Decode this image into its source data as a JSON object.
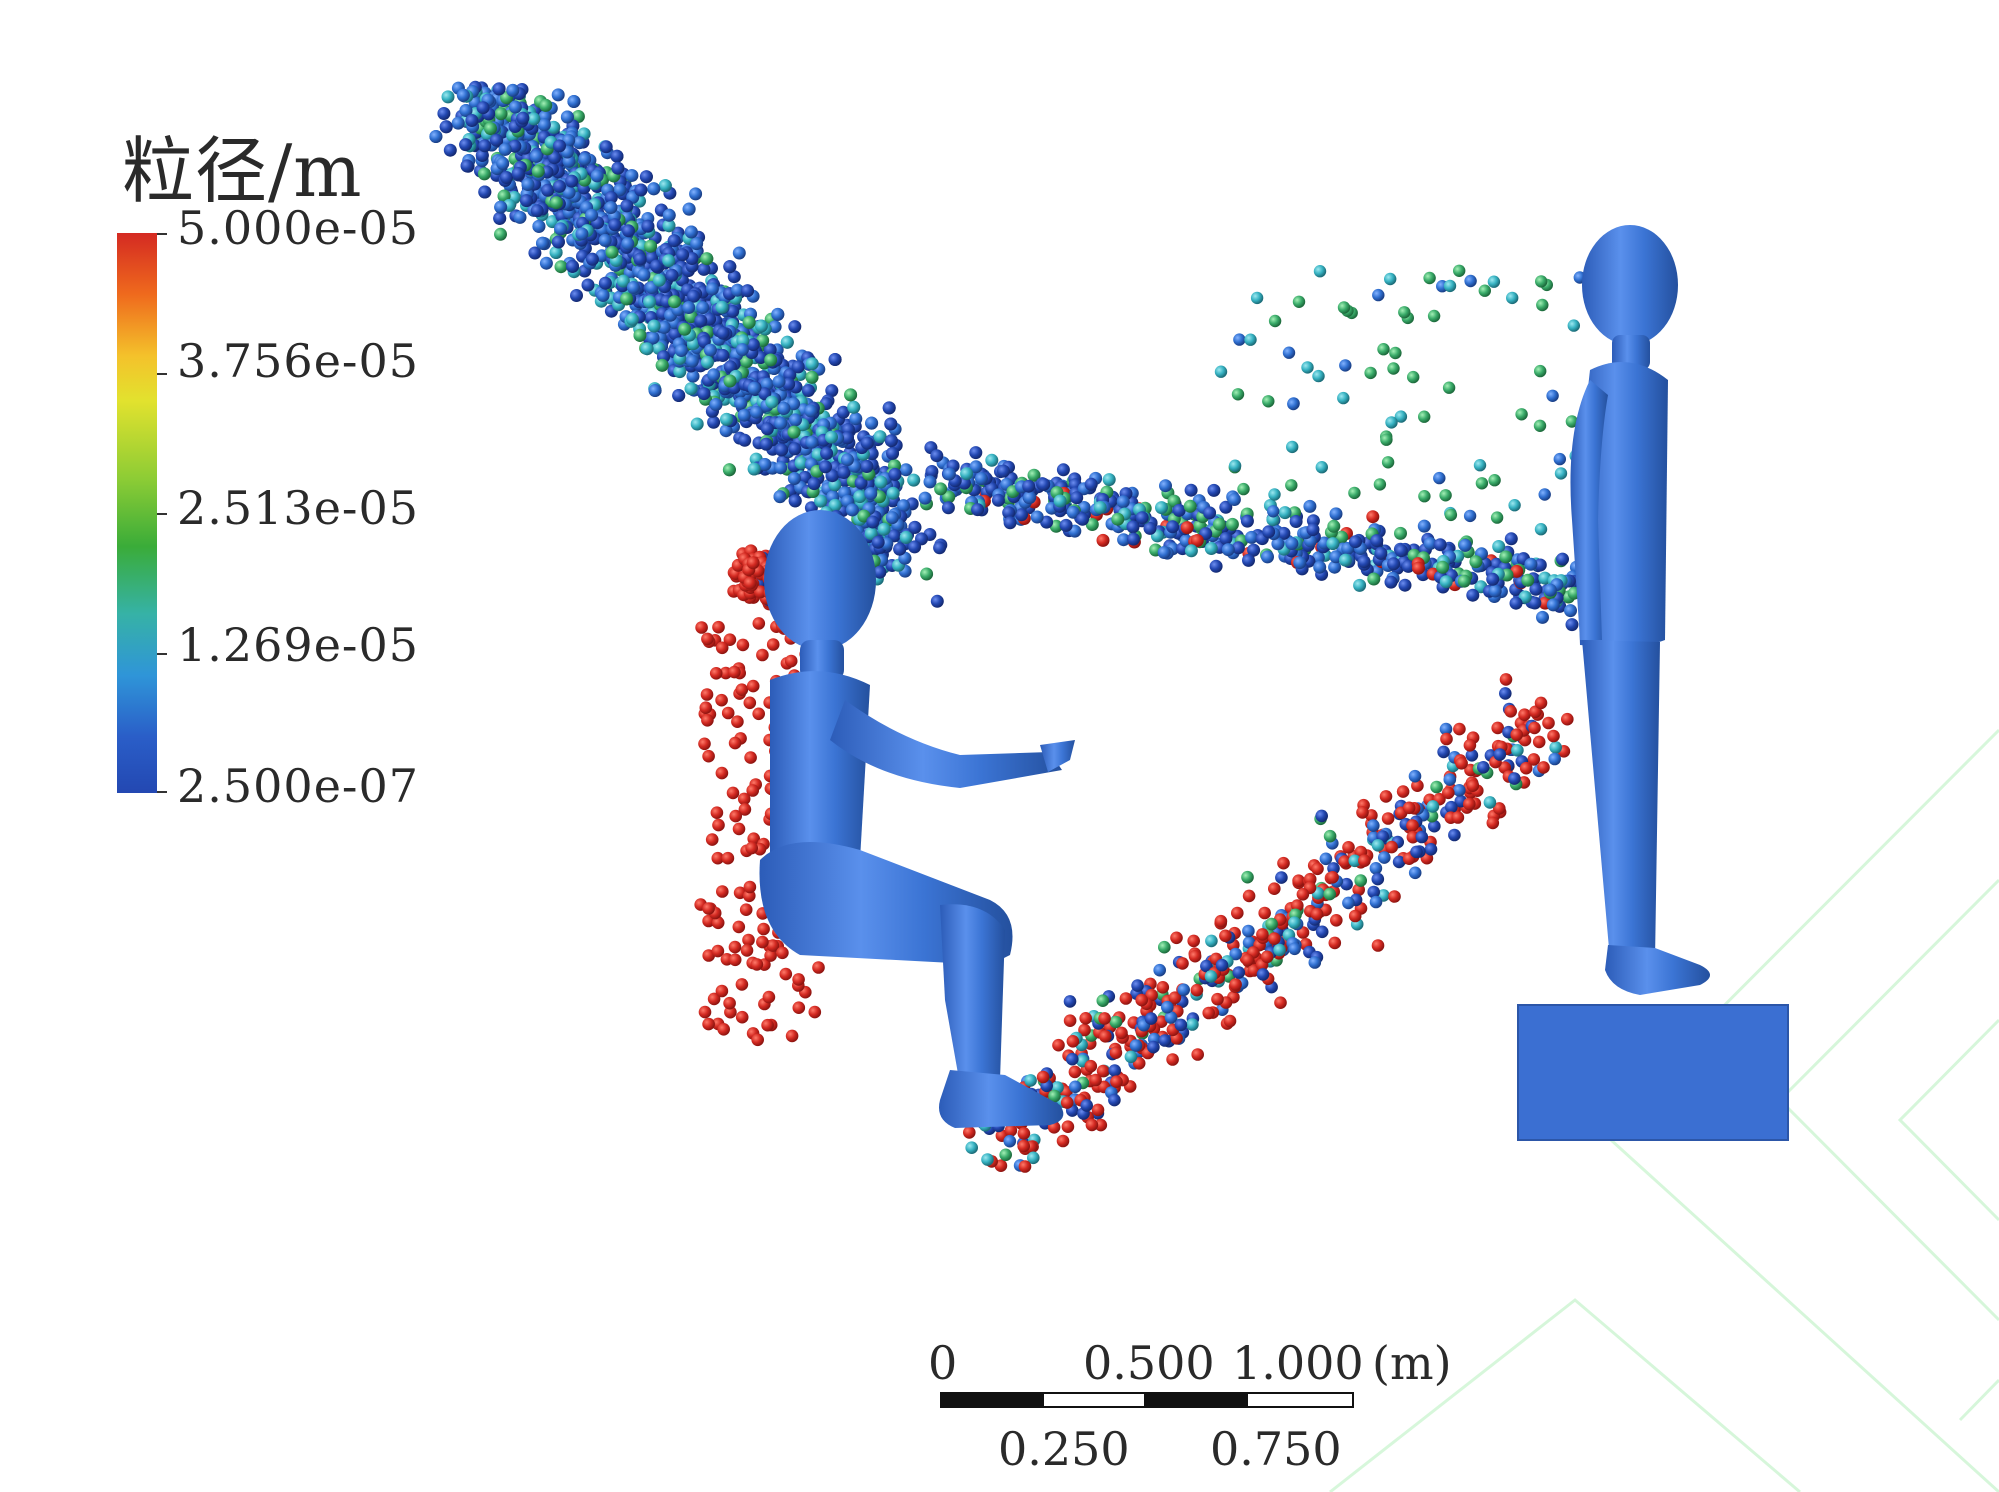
{
  "legend": {
    "title": "粒径/m",
    "labels": [
      "5.000e-05",
      "3.756e-05",
      "2.513e-05",
      "1.269e-05",
      "2.500e-07"
    ]
  },
  "colors": {
    "large_particle": "#d42a22",
    "small_particle_dark": "#2348b2",
    "small_particle_mid": "#2f6fd0",
    "small_particle_cyan": "#36b2c2",
    "small_particle_green": "#3aac6a",
    "body_blue": "#3b74d4",
    "background": "#ffffff"
  },
  "scale_bar": {
    "top_labels": [
      "0",
      "0.500",
      "1.000",
      "(m)"
    ],
    "bottom_labels": [
      "0.250",
      "0.750"
    ]
  },
  "scene": {
    "seated_figure": "seated-human-model",
    "standing_figure": "standing-human-model",
    "platform": "floor-block"
  }
}
